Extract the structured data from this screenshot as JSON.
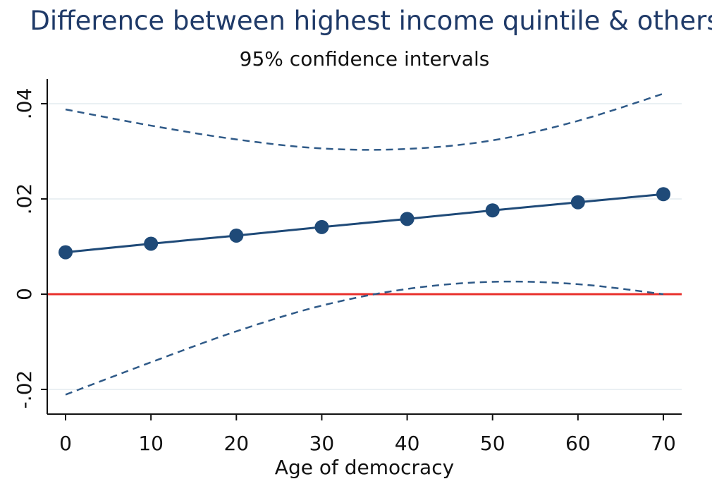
{
  "chart_data": {
    "type": "line",
    "title": "Difference between highest income quintile & others",
    "subtitle": "95% confidence intervals",
    "xlabel": "Age of democracy",
    "ylabel": "",
    "x": [
      0,
      10,
      20,
      30,
      40,
      50,
      60,
      70
    ],
    "xticks": [
      0,
      10,
      20,
      30,
      40,
      50,
      60,
      70
    ],
    "xtick_labels": [
      "0",
      "10",
      "20",
      "30",
      "40",
      "50",
      "60",
      "70"
    ],
    "yticks": [
      -0.02,
      0,
      0.02,
      0.04
    ],
    "ytick_labels": [
      "-.02",
      "0",
      ".02",
      ".04"
    ],
    "xlim": [
      -2,
      72
    ],
    "ylim": [
      -0.025,
      0.046
    ],
    "grid": true,
    "series": [
      {
        "role": "estimate",
        "values": [
          0.0088,
          0.0106,
          0.0123,
          0.0141,
          0.0158,
          0.0176,
          0.0193,
          0.021
        ],
        "color": "#1f4a78",
        "style": "solid",
        "markers": true
      },
      {
        "role": "upper-ci",
        "values": [
          0.0388,
          0.0354,
          0.0325,
          0.0306,
          0.0305,
          0.0323,
          0.0364,
          0.0421
        ],
        "color": "#2f5a88",
        "style": "dashed",
        "markers": false
      },
      {
        "role": "lower-ci",
        "values": [
          -0.0211,
          -0.0143,
          -0.0078,
          -0.0024,
          0.0011,
          0.0026,
          0.0021,
          0.0
        ],
        "color": "#2f5a88",
        "style": "dashed",
        "markers": false
      }
    ],
    "reference_line": {
      "y": 0,
      "color": "#e8302c"
    }
  }
}
